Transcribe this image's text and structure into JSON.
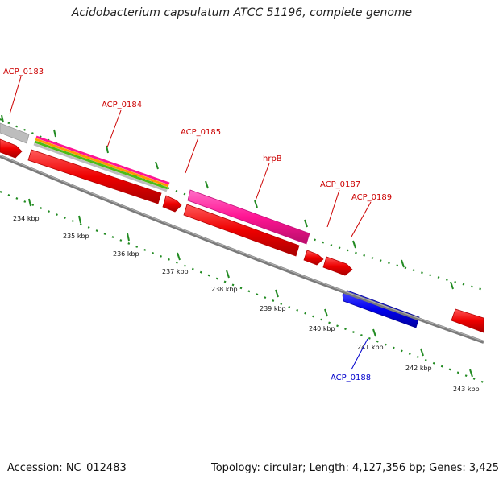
{
  "title": "Acidobacterium capsulatum ATCC 51196, complete genome",
  "footer": {
    "accession": "Accession: NC_012483",
    "stats": "Topology: circular; Length: 4,127,356 bp; Genes: 3,425"
  },
  "colors": {
    "forward_gene": "#ff0000",
    "reverse_gene": "#0000ff",
    "hrpB_gene": "#ff1493",
    "label_forward": "#cc0000",
    "label_reverse": "#0000cc",
    "backbone": "#808080",
    "tick_marks": "#228b22"
  },
  "genes": [
    {
      "id": "ACP_0183",
      "label": "ACP_0183",
      "strand": "forward"
    },
    {
      "id": "ACP_0184",
      "label": "ACP_0184",
      "strand": "forward"
    },
    {
      "id": "ACP_0185",
      "label": "ACP_0185",
      "strand": "forward"
    },
    {
      "id": "hrpB",
      "label": "hrpB",
      "strand": "forward"
    },
    {
      "id": "ACP_0187",
      "label": "ACP_0187",
      "strand": "forward"
    },
    {
      "id": "ACP_0189",
      "label": "ACP_0189",
      "strand": "forward"
    },
    {
      "id": "ACP_0188",
      "label": "ACP_0188",
      "strand": "reverse"
    }
  ],
  "scale_ticks": [
    {
      "label": "234 kbp"
    },
    {
      "label": "235 kbp"
    },
    {
      "label": "236 kbp"
    },
    {
      "label": "237 kbp"
    },
    {
      "label": "238 kbp"
    },
    {
      "label": "239 kbp"
    },
    {
      "label": "240 kbp"
    },
    {
      "label": "241 kbp"
    },
    {
      "label": "242 kbp"
    },
    {
      "label": "243 kbp"
    }
  ]
}
